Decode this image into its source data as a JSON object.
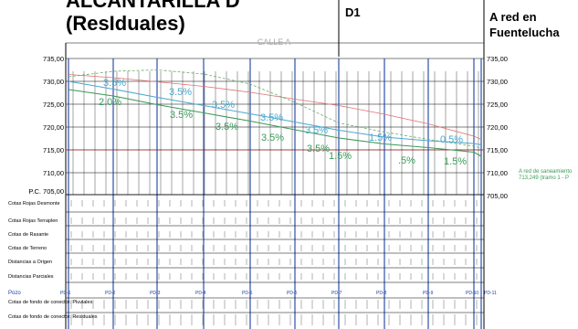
{
  "titles": {
    "main_line1": "ALCANTARILLA D",
    "main_line2": "(ResIduales)",
    "section": "D1",
    "dest_line1": "A red en",
    "dest_line2": "Fuentelucha",
    "street": "CALLE A"
  },
  "axis": {
    "y_ticks": [
      "735,00",
      "730,00",
      "725,00",
      "720,00",
      "715,00",
      "710,00"
    ],
    "right_ticks": [
      "735,00",
      "730,00",
      "725,00",
      "720,00",
      "715,00",
      "710,00",
      "705,00"
    ],
    "datum": "P.C. 705,00"
  },
  "rows": [
    "Cotas Rojas Desmonte",
    "Cotas Rojas Terraplen",
    "Cotas de Rasante",
    "Cotas de Terreno",
    "Distancias a Origen",
    "Distancias Parciales"
  ],
  "pozos_label": "Pozo",
  "pozos": [
    "PD-1",
    "PD-2",
    "PD-3",
    "PD-4",
    "PD-5",
    "PD-6",
    "PD-7",
    "PD-8",
    "PD-9",
    "PD-10",
    "PD-11"
  ],
  "bottom_rows": [
    "Cotas de fondo de conector. Pluviales",
    "Cotas de fondo de conector. Residuales"
  ],
  "slopes_blue": [
    "3.5%",
    "3.5%",
    "3.5%",
    "3.5%",
    "3.5%",
    "1.5%",
    "0.5%"
  ],
  "slopes_green": [
    "2.0%",
    "3.5%",
    "3.5%",
    "3.5%",
    "3.5%",
    "1.5%",
    ".5%",
    "1.5%"
  ],
  "connection_note_line1": "A red de saneamiento",
  "connection_note_line2": "713,249 (tramo 1 - P",
  "colors": {
    "terrain": "#e07070",
    "rasante": "#6aaa6a",
    "blue_pipe": "#4aa8d0",
    "green_pipe": "#3a9a5a",
    "pozo_line": "#1a3fa0",
    "grid": "#000000"
  }
}
